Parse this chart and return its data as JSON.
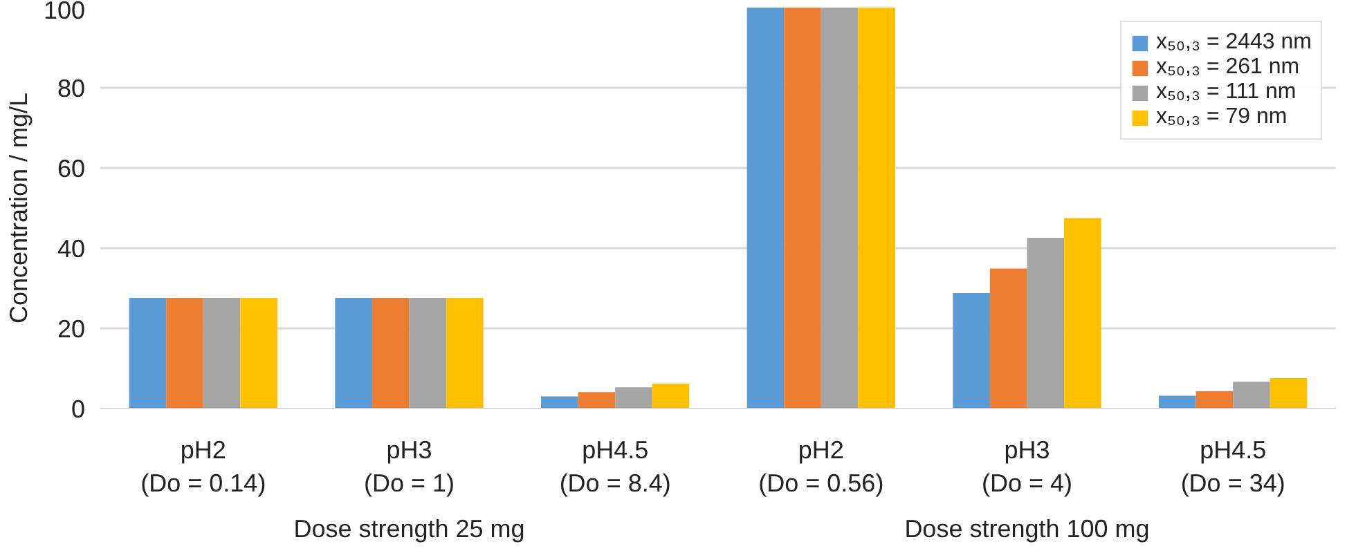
{
  "chart_data": {
    "type": "bar",
    "ylabel": "Concentration / mg/L",
    "categories": [
      "pH2\n(Do = 0.14)",
      "pH3\n(Do = 1)",
      "pH4.5\n(Do = 8.4)",
      "pH2\n(Do = 0.56)",
      "pH3\n(Do = 4)",
      "pH4.5\n(Do = 34)"
    ],
    "annotations": [
      "Dose strength 25 mg",
      "Dose strength 100 mg"
    ],
    "series": [
      {
        "name": "x₅₀,₃ = 2443 nm",
        "color": "#5b9bd5",
        "values": [
          27.6,
          27.6,
          3.0,
          100,
          28.8,
          3.2
        ]
      },
      {
        "name": "x₅₀,₃ = 261 nm",
        "color": "#ed7d31",
        "values": [
          27.6,
          27.6,
          4.1,
          100,
          34.9,
          4.3
        ]
      },
      {
        "name": "x₅₀,₃ = 111 nm",
        "color": "#a5a5a5",
        "values": [
          27.6,
          27.6,
          5.3,
          100,
          42.6,
          6.7
        ]
      },
      {
        "name": "x₅₀,₃ = 79 nm",
        "color": "#ffc000",
        "values": [
          27.6,
          27.6,
          6.2,
          100,
          47.5,
          7.6
        ]
      }
    ],
    "ylim": [
      0,
      100
    ],
    "yticks": [
      0,
      20,
      40,
      60,
      80,
      100
    ],
    "grid": "y",
    "legend": "top right"
  }
}
